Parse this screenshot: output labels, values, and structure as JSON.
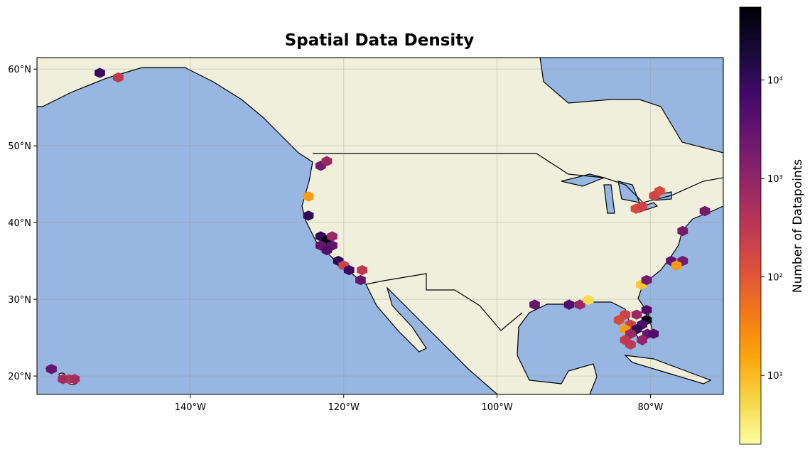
{
  "chart_data": {
    "type": "hexbin",
    "title": "Spatial Data Density",
    "xlim": [
      -160,
      -70.5
    ],
    "ylim": [
      17.6,
      61.5
    ],
    "xticks": [
      {
        "value": -140,
        "label": "140°W"
      },
      {
        "value": -120,
        "label": "120°W"
      },
      {
        "value": -100,
        "label": "100°W"
      },
      {
        "value": -80,
        "label": "80°W"
      }
    ],
    "yticks": [
      {
        "value": 20,
        "label": "20°N"
      },
      {
        "value": 30,
        "label": "30°N"
      },
      {
        "value": 40,
        "label": "40°N"
      },
      {
        "value": 50,
        "label": "50°N"
      },
      {
        "value": 60,
        "label": "60°N"
      }
    ],
    "grid": true,
    "x": [
      -151.8,
      -149.4,
      -123.0,
      -122.2,
      -124.6,
      -124.6,
      -123.0,
      -122.2,
      -121.5,
      -123.0,
      -121.5,
      -122.2,
      -120.7,
      -120.0,
      -119.3,
      -117.6,
      -117.8,
      -95.1,
      -90.6,
      -89.2,
      -88.1,
      -81.2,
      -80.5,
      -77.3,
      -75.8,
      -76.6,
      -75.8,
      -81.9,
      -81.1,
      -79.5,
      -78.8,
      -72.9,
      -80.5,
      -80.5,
      -83.3,
      -81.8,
      -84.1,
      -82.6,
      -81.1,
      -83.3,
      -81.8,
      -80.4,
      -82.6,
      -81.1,
      -83.3,
      -82.6,
      -79.6,
      -158.1,
      -155.8,
      -155.1,
      -156.6
    ],
    "y": [
      59.5,
      58.9,
      47.4,
      48.0,
      43.4,
      40.9,
      38.2,
      37.7,
      38.2,
      37.0,
      37.0,
      36.4,
      35.0,
      34.4,
      33.8,
      33.8,
      32.5,
      29.3,
      29.3,
      29.3,
      29.9,
      31.9,
      32.5,
      35.0,
      35.0,
      34.4,
      38.9,
      41.8,
      42.1,
      43.5,
      44.1,
      41.5,
      28.6,
      27.3,
      28.0,
      28.0,
      27.3,
      26.7,
      26.7,
      26.1,
      26.1,
      25.5,
      25.5,
      24.7,
      24.7,
      24.1,
      25.5,
      20.9,
      19.6,
      19.6,
      19.6
    ],
    "values": [
      8000,
      300,
      2000,
      800,
      20,
      10000,
      10000,
      40000,
      800,
      3000,
      3000,
      5000,
      10000,
      200,
      8000,
      300,
      3000,
      3000,
      5000,
      800,
      5,
      8,
      2000,
      3000,
      2000,
      20,
      2000,
      150,
      200,
      200,
      150,
      2000,
      5000,
      40000,
      200,
      800,
      150,
      200,
      5000,
      20,
      10000,
      3000,
      800,
      1000,
      300,
      300,
      5000,
      3000,
      300,
      600,
      600
    ],
    "colorbar": {
      "label": "Number of Datapoints",
      "log": true,
      "clim": [
        2,
        55000
      ],
      "ticks": [
        {
          "value": 10,
          "label": "10¹"
        },
        {
          "value": 100,
          "label": "10²"
        },
        {
          "value": 1000,
          "label": "10³"
        },
        {
          "value": 10000,
          "label": "10⁴"
        }
      ],
      "colors": [
        "#fcffa4",
        "#f6d746",
        "#fca50a",
        "#f37819",
        "#dd513a",
        "#bc3754",
        "#932667",
        "#6a176e",
        "#420a68",
        "#160b39",
        "#000004"
      ]
    }
  }
}
